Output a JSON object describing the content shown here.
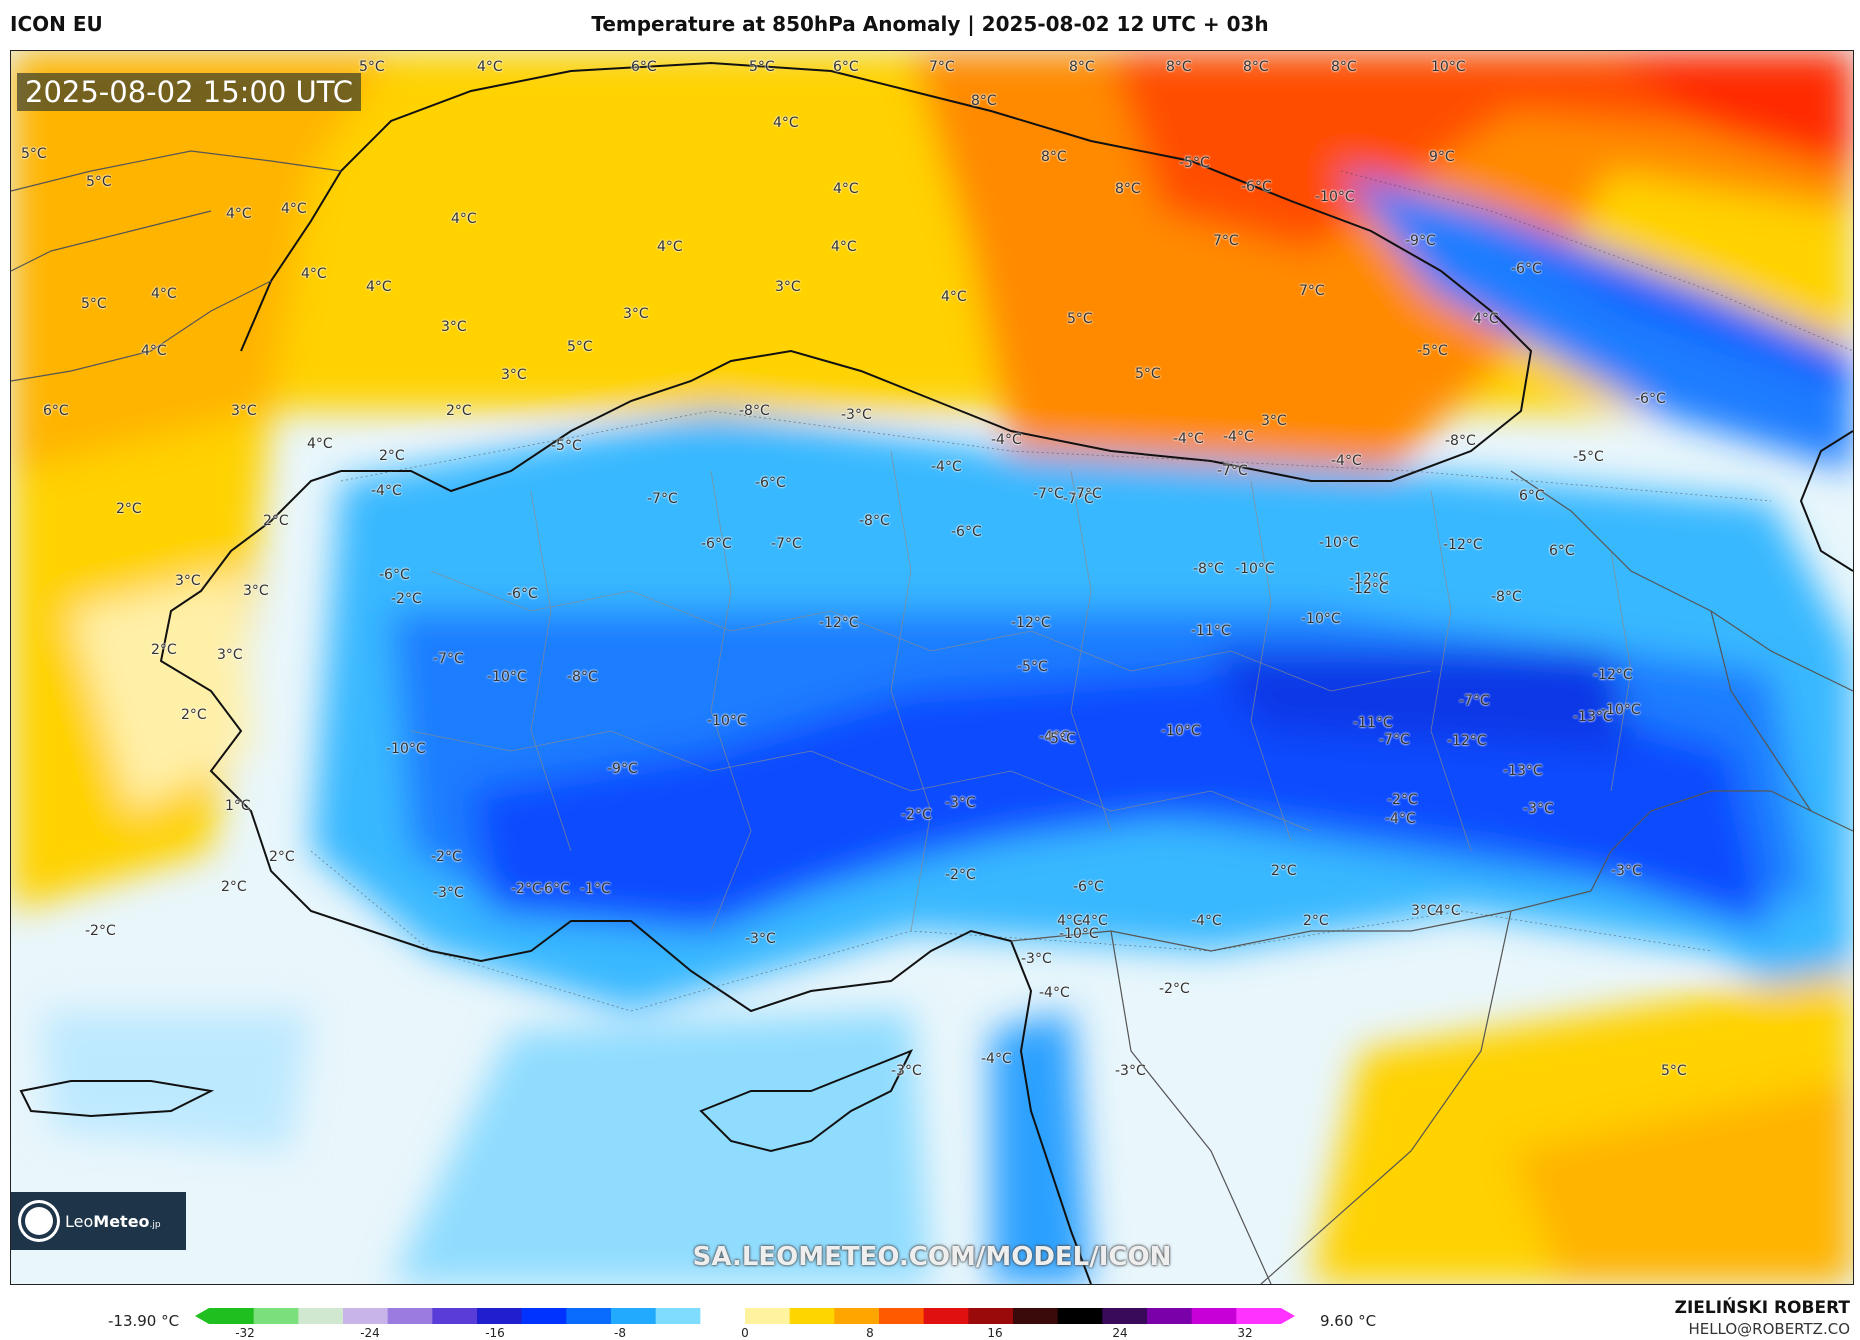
{
  "model": "ICON EU",
  "title": "Temperature at 850hPa Anomaly | 2025-08-02 12 UTC + 03h",
  "valid_time": "2025-08-02 15:00 UTC",
  "watermark": "SA.LEOMETEO.COM/MODEL/ICON",
  "logo": {
    "name_part1": "Leo",
    "name_part2": "Meteo",
    "suffix": ".jp"
  },
  "author": "ZIELIŃSKI ROBERT",
  "email": "HELLO@ROBERTZ.CO",
  "colorbar": {
    "min_label": "-13.90 °C",
    "max_label": "9.60 °C",
    "ticks": [
      "-32",
      "-24",
      "-16",
      "-8",
      "0",
      "8",
      "16",
      "24",
      "32"
    ],
    "colors": [
      "#1fbf1f",
      "#7be07b",
      "#cfe8cf",
      "#c8b4e8",
      "#9b7be0",
      "#5a3cd8",
      "#1f1fcf",
      "#0033ff",
      "#0a6bff",
      "#22aaff",
      "#7fdcff",
      "#ffffff",
      "#fff3a0",
      "#ffd500",
      "#ffa500",
      "#ff5a00",
      "#e01010",
      "#9a0a0a",
      "#3a0a0a",
      "#000000",
      "#3a0a5a",
      "#7a00aa",
      "#c800d8",
      "#ff33ff"
    ]
  },
  "map_labels": [
    {
      "t": "5°C"
    },
    {
      "t": "4°C"
    },
    {
      "t": "6°C"
    },
    {
      "t": "5°C"
    },
    {
      "t": "6°C"
    },
    {
      "t": "7°C"
    },
    {
      "t": "8°C"
    },
    {
      "t": "8°C"
    },
    {
      "t": "8°C"
    },
    {
      "t": "8°C"
    },
    {
      "t": "10°C"
    },
    {
      "t": "8°C"
    },
    {
      "t": "4°C"
    },
    {
      "t": "8°C"
    },
    {
      "t": "-5°C"
    },
    {
      "t": "9°C"
    },
    {
      "t": "-6°C"
    },
    {
      "t": "-10°C"
    },
    {
      "t": "8°C"
    },
    {
      "t": "4°C"
    },
    {
      "t": "5°C"
    },
    {
      "t": "5°C"
    },
    {
      "t": "4°C"
    },
    {
      "t": "4°C"
    },
    {
      "t": "4°C"
    },
    {
      "t": "4°C"
    },
    {
      "t": "7°C"
    },
    {
      "t": "-9°C"
    },
    {
      "t": "-6°C"
    },
    {
      "t": "4°C"
    },
    {
      "t": "4°C"
    },
    {
      "t": "4°C"
    },
    {
      "t": "3°C"
    },
    {
      "t": "4°C"
    },
    {
      "t": "7°C"
    },
    {
      "t": "4°C"
    },
    {
      "t": "5°C"
    },
    {
      "t": "4°C"
    },
    {
      "t": "3°C"
    },
    {
      "t": "3°C"
    },
    {
      "t": "5°C"
    },
    {
      "t": "5°C"
    },
    {
      "t": "-5°C"
    },
    {
      "t": "4°C"
    },
    {
      "t": "3°C"
    },
    {
      "t": "5°C"
    },
    {
      "t": "6°C"
    },
    {
      "t": "3°C"
    },
    {
      "t": "2°C"
    },
    {
      "t": "-8°C"
    },
    {
      "t": "-3°C"
    },
    {
      "t": "-6°C"
    },
    {
      "t": "3°C"
    },
    {
      "t": "4°C"
    },
    {
      "t": "2°C"
    },
    {
      "t": "-5°C"
    },
    {
      "t": "-4°C"
    },
    {
      "t": "-4°C"
    },
    {
      "t": "-8°C"
    },
    {
      "t": "-5°C"
    },
    {
      "t": "-4°C"
    },
    {
      "t": "-4°C"
    },
    {
      "t": "-4°C"
    },
    {
      "t": "-7°C"
    },
    {
      "t": "-4°C"
    },
    {
      "t": "-7°C"
    },
    {
      "t": "2°C"
    },
    {
      "t": "2°C"
    },
    {
      "t": "-7°C"
    },
    {
      "t": "-6°C"
    },
    {
      "t": "-8°C"
    },
    {
      "t": "-7°C"
    },
    {
      "t": "-7°C"
    },
    {
      "t": "6°C"
    },
    {
      "t": "-6°C"
    },
    {
      "t": "-7°C"
    },
    {
      "t": "-6°C"
    },
    {
      "t": "-10°C"
    },
    {
      "t": "-10°C"
    },
    {
      "t": "-12°C"
    },
    {
      "t": "6°C"
    },
    {
      "t": "3°C"
    },
    {
      "t": "-6°C"
    },
    {
      "t": "-8°C"
    },
    {
      "t": "-12°C"
    },
    {
      "t": "3°C"
    },
    {
      "t": "-6°C"
    },
    {
      "t": "-12°C"
    },
    {
      "t": "-8°C"
    },
    {
      "t": "-2°C"
    },
    {
      "t": "-12°C"
    },
    {
      "t": "-12°C"
    },
    {
      "t": "-10°C"
    },
    {
      "t": "-11°C"
    },
    {
      "t": "2°C"
    },
    {
      "t": "3°C"
    },
    {
      "t": "-7°C"
    },
    {
      "t": "-10°C"
    },
    {
      "t": "-8°C"
    },
    {
      "t": "-5°C"
    },
    {
      "t": "-11°C"
    },
    {
      "t": "-13°C"
    },
    {
      "t": "-12°C"
    },
    {
      "t": "2°C"
    },
    {
      "t": "-10°C"
    },
    {
      "t": "-7°C"
    },
    {
      "t": "-7°C"
    },
    {
      "t": "-12°C"
    },
    {
      "t": "-4°C"
    },
    {
      "t": "-10°C"
    },
    {
      "t": "-10°C"
    },
    {
      "t": "-10°C"
    },
    {
      "t": "-9°C"
    },
    {
      "t": "-5°C"
    },
    {
      "t": "-13°C"
    },
    {
      "t": "1°C"
    },
    {
      "t": "-2°C"
    },
    {
      "t": "-3°C"
    },
    {
      "t": "-2°C"
    },
    {
      "t": "-3°C"
    },
    {
      "t": "2°C"
    },
    {
      "t": "-2°C"
    },
    {
      "t": "-4°C"
    },
    {
      "t": "-2°C"
    },
    {
      "t": "-1°C"
    },
    {
      "t": "2°C"
    },
    {
      "t": "-3°C"
    },
    {
      "t": "-2°C"
    },
    {
      "t": "-4°C"
    },
    {
      "t": "2°C"
    },
    {
      "t": "-3°C"
    },
    {
      "t": "-6°C"
    },
    {
      "t": "-6°C"
    },
    {
      "t": "4°C"
    },
    {
      "t": "-4°C"
    },
    {
      "t": "2°C"
    },
    {
      "t": "3°C"
    },
    {
      "t": "-2°C"
    },
    {
      "t": "-3°C"
    },
    {
      "t": "-3°C"
    },
    {
      "t": "-10°C"
    },
    {
      "t": "4°C"
    },
    {
      "t": "-2°C"
    },
    {
      "t": "-4°C"
    },
    {
      "t": "-3°C"
    },
    {
      "t": "-3°C"
    },
    {
      "t": "-4°C"
    },
    {
      "t": "5°C"
    }
  ]
}
